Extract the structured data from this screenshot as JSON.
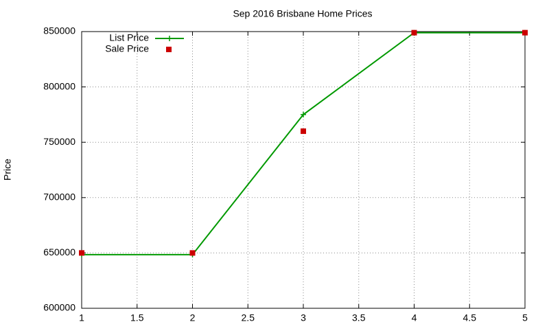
{
  "chart_data": {
    "type": "line",
    "title": "Sep 2016 Brisbane Home Prices",
    "y_label": "Price",
    "x": [
      1,
      2,
      3,
      4,
      5
    ],
    "series": [
      {
        "name": "List Price",
        "color": "#009900",
        "style": "linespoints",
        "values": [
          648500,
          648500,
          775000,
          849000,
          849000
        ]
      },
      {
        "name": "Sale Price",
        "color": "#cc0000",
        "style": "points",
        "values": [
          650000,
          650000,
          760000,
          849000,
          849000
        ]
      }
    ],
    "xlim": [
      1,
      5
    ],
    "xticks": [
      1,
      1.5,
      2,
      2.5,
      3,
      3.5,
      4,
      4.5,
      5
    ],
    "ylim": [
      600000,
      850000
    ],
    "yticks": [
      600000,
      650000,
      700000,
      750000,
      800000,
      850000
    ],
    "grid": true,
    "legend": "top-left"
  }
}
